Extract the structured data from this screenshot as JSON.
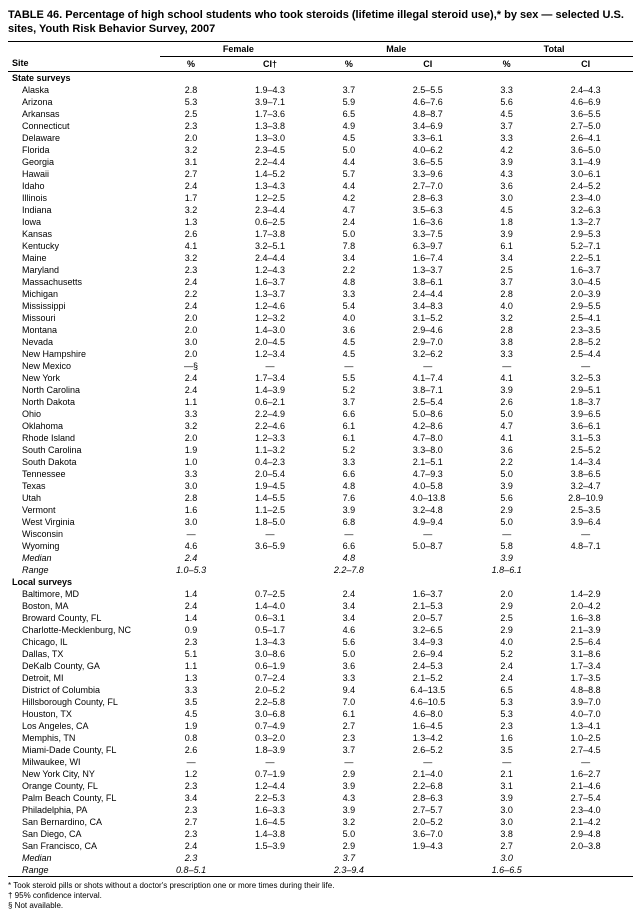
{
  "title": "TABLE 46. Percentage of high school students who took steroids (lifetime illegal steroid use),* by sex — selected U.S. sites, Youth Risk Behavior Survey, 2007",
  "groups": [
    "Female",
    "Male",
    "Total"
  ],
  "columns": {
    "site": "Site",
    "pct": "%",
    "ci": "CI",
    "ci_dagger": "CI†"
  },
  "sections": [
    {
      "label": "State surveys",
      "rows": [
        {
          "site": "Alaska",
          "f_pct": "2.8",
          "f_ci": "1.9–4.3",
          "m_pct": "3.7",
          "m_ci": "2.5–5.5",
          "t_pct": "3.3",
          "t_ci": "2.4–4.3"
        },
        {
          "site": "Arizona",
          "f_pct": "5.3",
          "f_ci": "3.9–7.1",
          "m_pct": "5.9",
          "m_ci": "4.6–7.6",
          "t_pct": "5.6",
          "t_ci": "4.6–6.9"
        },
        {
          "site": "Arkansas",
          "f_pct": "2.5",
          "f_ci": "1.7–3.6",
          "m_pct": "6.5",
          "m_ci": "4.8–8.7",
          "t_pct": "4.5",
          "t_ci": "3.6–5.5"
        },
        {
          "site": "Connecticut",
          "f_pct": "2.3",
          "f_ci": "1.3–3.8",
          "m_pct": "4.9",
          "m_ci": "3.4–6.9",
          "t_pct": "3.7",
          "t_ci": "2.7–5.0"
        },
        {
          "site": "Delaware",
          "f_pct": "2.0",
          "f_ci": "1.3–3.0",
          "m_pct": "4.5",
          "m_ci": "3.3–6.1",
          "t_pct": "3.3",
          "t_ci": "2.6–4.1"
        },
        {
          "site": "Florida",
          "f_pct": "3.2",
          "f_ci": "2.3–4.5",
          "m_pct": "5.0",
          "m_ci": "4.0–6.2",
          "t_pct": "4.2",
          "t_ci": "3.6–5.0"
        },
        {
          "site": "Georgia",
          "f_pct": "3.1",
          "f_ci": "2.2–4.4",
          "m_pct": "4.4",
          "m_ci": "3.6–5.5",
          "t_pct": "3.9",
          "t_ci": "3.1–4.9"
        },
        {
          "site": "Hawaii",
          "f_pct": "2.7",
          "f_ci": "1.4–5.2",
          "m_pct": "5.7",
          "m_ci": "3.3–9.6",
          "t_pct": "4.3",
          "t_ci": "3.0–6.1"
        },
        {
          "site": "Idaho",
          "f_pct": "2.4",
          "f_ci": "1.3–4.3",
          "m_pct": "4.4",
          "m_ci": "2.7–7.0",
          "t_pct": "3.6",
          "t_ci": "2.4–5.2"
        },
        {
          "site": "Illinois",
          "f_pct": "1.7",
          "f_ci": "1.2–2.5",
          "m_pct": "4.2",
          "m_ci": "2.8–6.3",
          "t_pct": "3.0",
          "t_ci": "2.3–4.0"
        },
        {
          "site": "Indiana",
          "f_pct": "3.2",
          "f_ci": "2.3–4.4",
          "m_pct": "4.7",
          "m_ci": "3.5–6.3",
          "t_pct": "4.5",
          "t_ci": "3.2–6.3"
        },
        {
          "site": "Iowa",
          "f_pct": "1.3",
          "f_ci": "0.6–2.5",
          "m_pct": "2.4",
          "m_ci": "1.6–3.6",
          "t_pct": "1.8",
          "t_ci": "1.3–2.7"
        },
        {
          "site": "Kansas",
          "f_pct": "2.6",
          "f_ci": "1.7–3.8",
          "m_pct": "5.0",
          "m_ci": "3.3–7.5",
          "t_pct": "3.9",
          "t_ci": "2.9–5.3"
        },
        {
          "site": "Kentucky",
          "f_pct": "4.1",
          "f_ci": "3.2–5.1",
          "m_pct": "7.8",
          "m_ci": "6.3–9.7",
          "t_pct": "6.1",
          "t_ci": "5.2–7.1"
        },
        {
          "site": "Maine",
          "f_pct": "3.2",
          "f_ci": "2.4–4.4",
          "m_pct": "3.4",
          "m_ci": "1.6–7.4",
          "t_pct": "3.4",
          "t_ci": "2.2–5.1"
        },
        {
          "site": "Maryland",
          "f_pct": "2.3",
          "f_ci": "1.2–4.3",
          "m_pct": "2.2",
          "m_ci": "1.3–3.7",
          "t_pct": "2.5",
          "t_ci": "1.6–3.7"
        },
        {
          "site": "Massachusetts",
          "f_pct": "2.4",
          "f_ci": "1.6–3.7",
          "m_pct": "4.8",
          "m_ci": "3.8–6.1",
          "t_pct": "3.7",
          "t_ci": "3.0–4.5"
        },
        {
          "site": "Michigan",
          "f_pct": "2.2",
          "f_ci": "1.3–3.7",
          "m_pct": "3.3",
          "m_ci": "2.4–4.4",
          "t_pct": "2.8",
          "t_ci": "2.0–3.9"
        },
        {
          "site": "Mississippi",
          "f_pct": "2.4",
          "f_ci": "1.2–4.6",
          "m_pct": "5.4",
          "m_ci": "3.4–8.3",
          "t_pct": "4.0",
          "t_ci": "2.9–5.5"
        },
        {
          "site": "Missouri",
          "f_pct": "2.0",
          "f_ci": "1.2–3.2",
          "m_pct": "4.0",
          "m_ci": "3.1–5.2",
          "t_pct": "3.2",
          "t_ci": "2.5–4.1"
        },
        {
          "site": "Montana",
          "f_pct": "2.0",
          "f_ci": "1.4–3.0",
          "m_pct": "3.6",
          "m_ci": "2.9–4.6",
          "t_pct": "2.8",
          "t_ci": "2.3–3.5"
        },
        {
          "site": "Nevada",
          "f_pct": "3.0",
          "f_ci": "2.0–4.5",
          "m_pct": "4.5",
          "m_ci": "2.9–7.0",
          "t_pct": "3.8",
          "t_ci": "2.8–5.2"
        },
        {
          "site": "New Hampshire",
          "f_pct": "2.0",
          "f_ci": "1.2–3.4",
          "m_pct": "4.5",
          "m_ci": "3.2–6.2",
          "t_pct": "3.3",
          "t_ci": "2.5–4.4"
        },
        {
          "site": "New Mexico",
          "f_pct": "—§",
          "f_ci": "—",
          "m_pct": "—",
          "m_ci": "—",
          "t_pct": "—",
          "t_ci": "—"
        },
        {
          "site": "New York",
          "f_pct": "2.4",
          "f_ci": "1.7–3.4",
          "m_pct": "5.5",
          "m_ci": "4.1–7.4",
          "t_pct": "4.1",
          "t_ci": "3.2–5.3"
        },
        {
          "site": "North Carolina",
          "f_pct": "2.4",
          "f_ci": "1.4–3.9",
          "m_pct": "5.2",
          "m_ci": "3.8–7.1",
          "t_pct": "3.9",
          "t_ci": "2.9–5.1"
        },
        {
          "site": "North Dakota",
          "f_pct": "1.1",
          "f_ci": "0.6–2.1",
          "m_pct": "3.7",
          "m_ci": "2.5–5.4",
          "t_pct": "2.6",
          "t_ci": "1.8–3.7"
        },
        {
          "site": "Ohio",
          "f_pct": "3.3",
          "f_ci": "2.2–4.9",
          "m_pct": "6.6",
          "m_ci": "5.0–8.6",
          "t_pct": "5.0",
          "t_ci": "3.9–6.5"
        },
        {
          "site": "Oklahoma",
          "f_pct": "3.2",
          "f_ci": "2.2–4.6",
          "m_pct": "6.1",
          "m_ci": "4.2–8.6",
          "t_pct": "4.7",
          "t_ci": "3.6–6.1"
        },
        {
          "site": "Rhode Island",
          "f_pct": "2.0",
          "f_ci": "1.2–3.3",
          "m_pct": "6.1",
          "m_ci": "4.7–8.0",
          "t_pct": "4.1",
          "t_ci": "3.1–5.3"
        },
        {
          "site": "South Carolina",
          "f_pct": "1.9",
          "f_ci": "1.1–3.2",
          "m_pct": "5.2",
          "m_ci": "3.3–8.0",
          "t_pct": "3.6",
          "t_ci": "2.5–5.2"
        },
        {
          "site": "South Dakota",
          "f_pct": "1.0",
          "f_ci": "0.4–2.3",
          "m_pct": "3.3",
          "m_ci": "2.1–5.1",
          "t_pct": "2.2",
          "t_ci": "1.4–3.4"
        },
        {
          "site": "Tennessee",
          "f_pct": "3.3",
          "f_ci": "2.0–5.4",
          "m_pct": "6.6",
          "m_ci": "4.7–9.3",
          "t_pct": "5.0",
          "t_ci": "3.8–6.5"
        },
        {
          "site": "Texas",
          "f_pct": "3.0",
          "f_ci": "1.9–4.5",
          "m_pct": "4.8",
          "m_ci": "4.0–5.8",
          "t_pct": "3.9",
          "t_ci": "3.2–4.7"
        },
        {
          "site": "Utah",
          "f_pct": "2.8",
          "f_ci": "1.4–5.5",
          "m_pct": "7.6",
          "m_ci": "4.0–13.8",
          "t_pct": "5.6",
          "t_ci": "2.8–10.9"
        },
        {
          "site": "Vermont",
          "f_pct": "1.6",
          "f_ci": "1.1–2.5",
          "m_pct": "3.9",
          "m_ci": "3.2–4.8",
          "t_pct": "2.9",
          "t_ci": "2.5–3.5"
        },
        {
          "site": "West Virginia",
          "f_pct": "3.0",
          "f_ci": "1.8–5.0",
          "m_pct": "6.8",
          "m_ci": "4.9–9.4",
          "t_pct": "5.0",
          "t_ci": "3.9–6.4"
        },
        {
          "site": "Wisconsin",
          "f_pct": "—",
          "f_ci": "—",
          "m_pct": "—",
          "m_ci": "—",
          "t_pct": "—",
          "t_ci": "—"
        },
        {
          "site": "Wyoming",
          "f_pct": "4.6",
          "f_ci": "3.6–5.9",
          "m_pct": "6.6",
          "m_ci": "5.0–8.7",
          "t_pct": "5.8",
          "t_ci": "4.8–7.1"
        }
      ],
      "summary": [
        {
          "site": "Median",
          "f_pct": "2.4",
          "f_ci": "",
          "m_pct": "4.8",
          "m_ci": "",
          "t_pct": "3.9",
          "t_ci": ""
        },
        {
          "site": "Range",
          "f_pct": "1.0–5.3",
          "f_ci": "",
          "m_pct": "2.2–7.8",
          "m_ci": "",
          "t_pct": "1.8–6.1",
          "t_ci": ""
        }
      ]
    },
    {
      "label": "Local surveys",
      "rows": [
        {
          "site": "Baltimore, MD",
          "f_pct": "1.4",
          "f_ci": "0.7–2.5",
          "m_pct": "2.4",
          "m_ci": "1.6–3.7",
          "t_pct": "2.0",
          "t_ci": "1.4–2.9"
        },
        {
          "site": "Boston, MA",
          "f_pct": "2.4",
          "f_ci": "1.4–4.0",
          "m_pct": "3.4",
          "m_ci": "2.1–5.3",
          "t_pct": "2.9",
          "t_ci": "2.0–4.2"
        },
        {
          "site": "Broward County, FL",
          "f_pct": "1.4",
          "f_ci": "0.6–3.1",
          "m_pct": "3.4",
          "m_ci": "2.0–5.7",
          "t_pct": "2.5",
          "t_ci": "1.6–3.8"
        },
        {
          "site": "Charlotte-Mecklenburg, NC",
          "f_pct": "0.9",
          "f_ci": "0.5–1.7",
          "m_pct": "4.6",
          "m_ci": "3.2–6.5",
          "t_pct": "2.9",
          "t_ci": "2.1–3.9"
        },
        {
          "site": "Chicago, IL",
          "f_pct": "2.3",
          "f_ci": "1.3–4.3",
          "m_pct": "5.6",
          "m_ci": "3.4–9.3",
          "t_pct": "4.0",
          "t_ci": "2.5–6.4"
        },
        {
          "site": "Dallas, TX",
          "f_pct": "5.1",
          "f_ci": "3.0–8.6",
          "m_pct": "5.0",
          "m_ci": "2.6–9.4",
          "t_pct": "5.2",
          "t_ci": "3.1–8.6"
        },
        {
          "site": "DeKalb County, GA",
          "f_pct": "1.1",
          "f_ci": "0.6–1.9",
          "m_pct": "3.6",
          "m_ci": "2.4–5.3",
          "t_pct": "2.4",
          "t_ci": "1.7–3.4"
        },
        {
          "site": "Detroit, MI",
          "f_pct": "1.3",
          "f_ci": "0.7–2.4",
          "m_pct": "3.3",
          "m_ci": "2.1–5.2",
          "t_pct": "2.4",
          "t_ci": "1.7–3.5"
        },
        {
          "site": "District of Columbia",
          "f_pct": "3.3",
          "f_ci": "2.0–5.2",
          "m_pct": "9.4",
          "m_ci": "6.4–13.5",
          "t_pct": "6.5",
          "t_ci": "4.8–8.8"
        },
        {
          "site": "Hillsborough County, FL",
          "f_pct": "3.5",
          "f_ci": "2.2–5.8",
          "m_pct": "7.0",
          "m_ci": "4.6–10.5",
          "t_pct": "5.3",
          "t_ci": "3.9–7.0"
        },
        {
          "site": "Houston, TX",
          "f_pct": "4.5",
          "f_ci": "3.0–6.8",
          "m_pct": "6.1",
          "m_ci": "4.6–8.0",
          "t_pct": "5.3",
          "t_ci": "4.0–7.0"
        },
        {
          "site": "Los Angeles, CA",
          "f_pct": "1.9",
          "f_ci": "0.7–4.9",
          "m_pct": "2.7",
          "m_ci": "1.6–4.5",
          "t_pct": "2.3",
          "t_ci": "1.3–4.1"
        },
        {
          "site": "Memphis, TN",
          "f_pct": "0.8",
          "f_ci": "0.3–2.0",
          "m_pct": "2.3",
          "m_ci": "1.3–4.2",
          "t_pct": "1.6",
          "t_ci": "1.0–2.5"
        },
        {
          "site": "Miami-Dade County, FL",
          "f_pct": "2.6",
          "f_ci": "1.8–3.9",
          "m_pct": "3.7",
          "m_ci": "2.6–5.2",
          "t_pct": "3.5",
          "t_ci": "2.7–4.5"
        },
        {
          "site": "Milwaukee, WI",
          "f_pct": "—",
          "f_ci": "—",
          "m_pct": "—",
          "m_ci": "—",
          "t_pct": "—",
          "t_ci": "—"
        },
        {
          "site": "New York City, NY",
          "f_pct": "1.2",
          "f_ci": "0.7–1.9",
          "m_pct": "2.9",
          "m_ci": "2.1–4.0",
          "t_pct": "2.1",
          "t_ci": "1.6–2.7"
        },
        {
          "site": "Orange County, FL",
          "f_pct": "2.3",
          "f_ci": "1.2–4.4",
          "m_pct": "3.9",
          "m_ci": "2.2–6.8",
          "t_pct": "3.1",
          "t_ci": "2.1–4.6"
        },
        {
          "site": "Palm Beach County, FL",
          "f_pct": "3.4",
          "f_ci": "2.2–5.3",
          "m_pct": "4.3",
          "m_ci": "2.8–6.3",
          "t_pct": "3.9",
          "t_ci": "2.7–5.4"
        },
        {
          "site": "Philadelphia, PA",
          "f_pct": "2.3",
          "f_ci": "1.6–3.3",
          "m_pct": "3.9",
          "m_ci": "2.7–5.7",
          "t_pct": "3.0",
          "t_ci": "2.3–4.0"
        },
        {
          "site": "San Bernardino, CA",
          "f_pct": "2.7",
          "f_ci": "1.6–4.5",
          "m_pct": "3.2",
          "m_ci": "2.0–5.2",
          "t_pct": "3.0",
          "t_ci": "2.1–4.2"
        },
        {
          "site": "San Diego, CA",
          "f_pct": "2.3",
          "f_ci": "1.4–3.8",
          "m_pct": "5.0",
          "m_ci": "3.6–7.0",
          "t_pct": "3.8",
          "t_ci": "2.9–4.8"
        },
        {
          "site": "San Francisco, CA",
          "f_pct": "2.4",
          "f_ci": "1.5–3.9",
          "m_pct": "2.9",
          "m_ci": "1.9–4.3",
          "t_pct": "2.7",
          "t_ci": "2.0–3.8"
        }
      ],
      "summary": [
        {
          "site": "Median",
          "f_pct": "2.3",
          "f_ci": "",
          "m_pct": "3.7",
          "m_ci": "",
          "t_pct": "3.0",
          "t_ci": ""
        },
        {
          "site": "Range",
          "f_pct": "0.8–5.1",
          "f_ci": "",
          "m_pct": "2.3–9.4",
          "m_ci": "",
          "t_pct": "1.6–6.5",
          "t_ci": ""
        }
      ]
    }
  ],
  "footnotes": [
    "* Took steroid pills or shots without a doctor's prescription one or more times during their life.",
    "† 95% confidence interval.",
    "§ Not available."
  ],
  "styling": {
    "background_color": "#ffffff",
    "text_color": "#000000",
    "border_color": "#000000",
    "font_family": "Arial, Helvetica, sans-serif",
    "title_fontsize": 11,
    "body_fontsize": 9,
    "footnote_fontsize": 8
  }
}
